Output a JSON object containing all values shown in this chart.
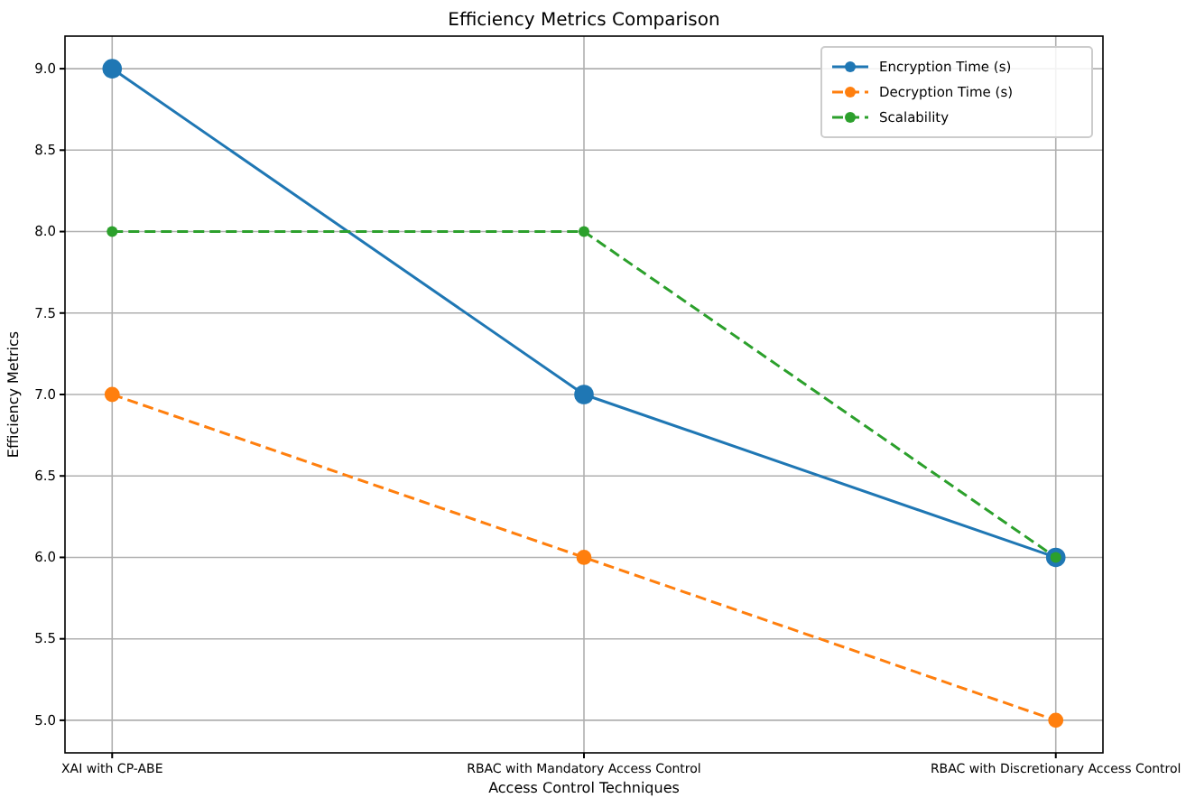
{
  "chart_data": {
    "type": "line",
    "title": "Efficiency Metrics Comparison",
    "xlabel": "Access Control Techniques",
    "ylabel": "Efficiency Metrics",
    "categories": [
      "XAI with CP-ABE",
      "RBAC with Mandatory Access Control",
      "RBAC with Discretionary Access Control"
    ],
    "series": [
      {
        "name": "Encryption Time (s)",
        "color": "#1f77b4",
        "values": [
          9,
          7,
          6
        ],
        "line_style": "solid"
      },
      {
        "name": "Decryption Time (s)",
        "color": "#ff7f0e",
        "values": [
          7,
          6,
          5
        ],
        "line_style": "dashed"
      },
      {
        "name": "Scalability",
        "color": "#2ca02c",
        "values": [
          8,
          8,
          6
        ],
        "line_style": "dashed"
      }
    ],
    "ylim": [
      4.8,
      9.2
    ],
    "yticks": [
      {
        "value": 5,
        "label": "5.0"
      },
      {
        "value": 5.5,
        "label": "5.5"
      },
      {
        "value": 6,
        "label": "6.0"
      },
      {
        "value": 6.5,
        "label": "6.5"
      },
      {
        "value": 7,
        "label": "7.0"
      },
      {
        "value": 7.5,
        "label": "7.5"
      },
      {
        "value": 8,
        "label": "8.0"
      },
      {
        "value": 8.5,
        "label": "8.5"
      },
      {
        "value": 9,
        "label": "9.0"
      }
    ],
    "grid": true,
    "legend": "top right",
    "marker": "circle"
  }
}
